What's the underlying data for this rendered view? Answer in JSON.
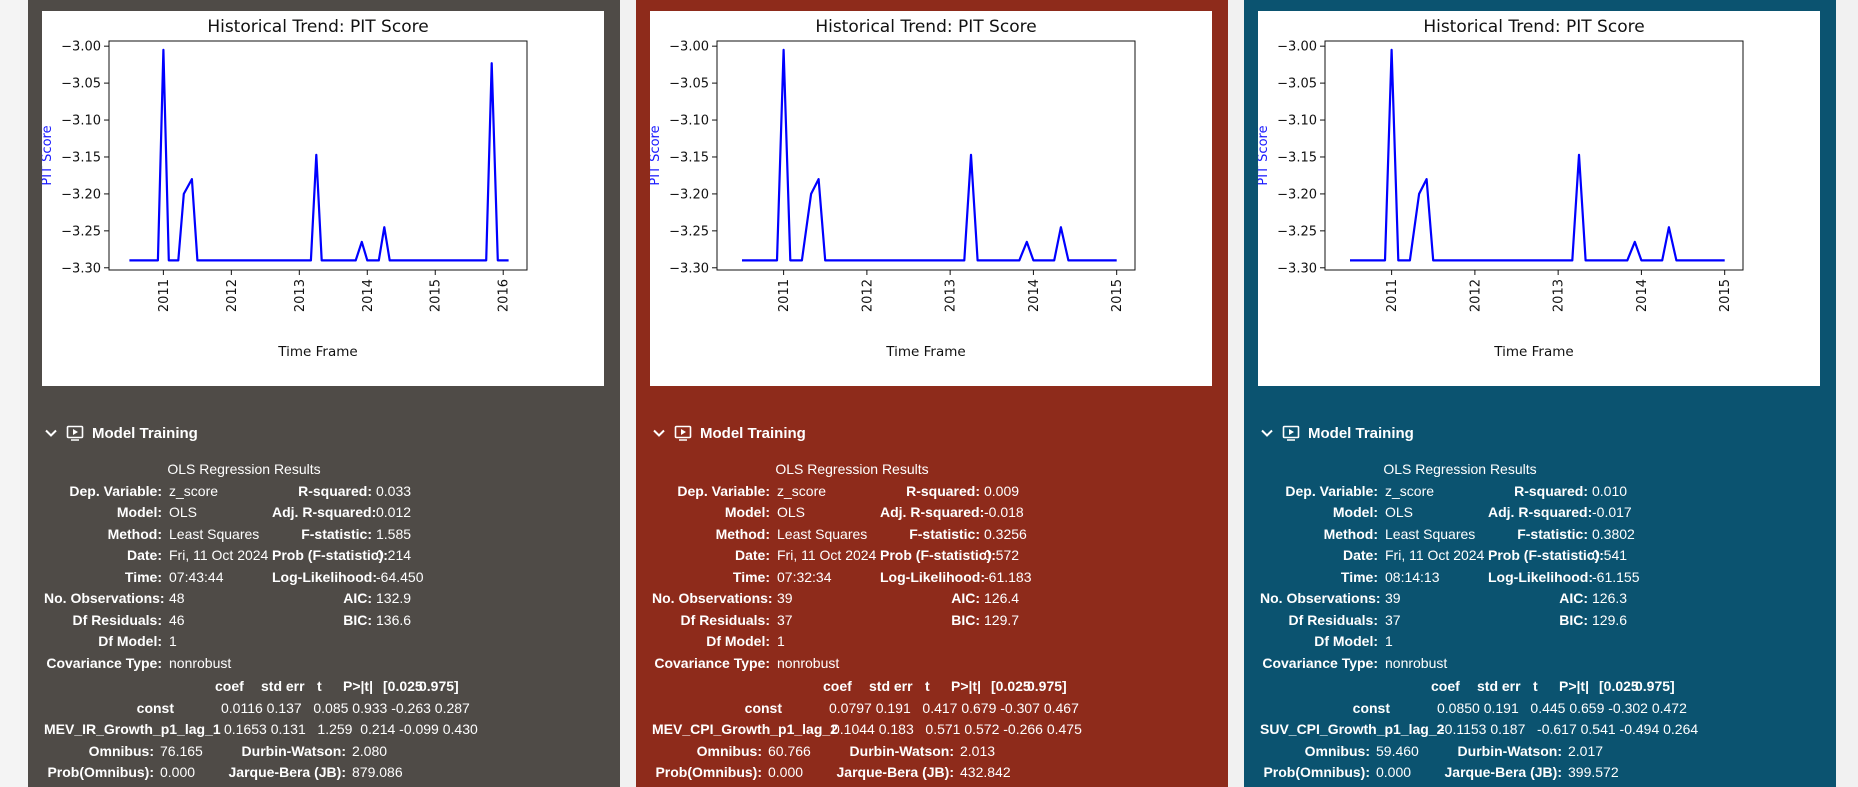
{
  "section_label": "Model Training",
  "colors": {
    "panel_0": "#4f4b47",
    "panel_1": "#8e2b1b",
    "panel_2": "#0b5370",
    "line": "#0000ff"
  },
  "icons": [
    "chevron-down-icon",
    "run-output-icon"
  ],
  "panels": [
    {
      "chart_data": {
        "type": "line",
        "title": "Historical Trend: PIT Score",
        "xlabel": "Time Frame",
        "ylabel": "PIT Score",
        "ylim": [
          -3.303,
          -2.993
        ],
        "xlim": [
          2010.2,
          2016.35
        ],
        "yticks": [
          -3.0,
          -3.05,
          -3.1,
          -3.15,
          -3.2,
          -3.25,
          -3.3
        ],
        "ytick_labels": [
          "−3.00",
          "−3.05",
          "−3.10",
          "−3.15",
          "−3.20",
          "−3.25",
          "−3.30"
        ],
        "xticks": [
          2011,
          2012,
          2013,
          2014,
          2015,
          2016
        ],
        "xtick_labels": [
          "2011",
          "2012",
          "2013",
          "2014",
          "2015",
          "2016"
        ],
        "series": [
          {
            "x": [
              2010.5,
              2010.92,
              2011.0,
              2011.08,
              2011.22,
              2011.3,
              2011.42,
              2011.5,
              2013.17,
              2013.25,
              2013.33,
              2013.83,
              2013.92,
              2014.0,
              2014.17,
              2014.25,
              2014.33,
              2014.42,
              2015.75,
              2015.83,
              2015.92,
              2016.08
            ],
            "y": [
              -3.29,
              -3.29,
              -3.005,
              -3.29,
              -3.29,
              -3.2,
              -3.18,
              -3.29,
              -3.29,
              -3.147,
              -3.29,
              -3.29,
              -3.265,
              -3.29,
              -3.29,
              -3.245,
              -3.29,
              -3.29,
              -3.29,
              -3.023,
              -3.29,
              -3.29
            ]
          }
        ]
      },
      "ols": {
        "title": "OLS Regression Results",
        "rows": [
          [
            "Dep. Variable:",
            "z_score",
            "R-squared:",
            "0.033"
          ],
          [
            "Model:",
            "OLS",
            "Adj. R-squared:",
            "0.012"
          ],
          [
            "Method:",
            "Least Squares",
            "F-statistic:",
            "1.585"
          ],
          [
            "Date:",
            "Fri, 11 Oct 2024",
            "Prob (F-statistic):",
            "0.214"
          ],
          [
            "Time:",
            "07:43:44",
            "Log-Likelihood:",
            "-64.450"
          ],
          [
            "No. Observations:",
            "48",
            "AIC:",
            "132.9"
          ],
          [
            "Df Residuals:",
            "46",
            "BIC:",
            "136.6"
          ],
          [
            "Df Model:",
            "1",
            "",
            ""
          ],
          [
            "Covariance Type:",
            "nonrobust",
            "",
            ""
          ]
        ],
        "coef_header": [
          "coef",
          "std err",
          "t",
          "P>|t|",
          "[0.025",
          "0.975]"
        ],
        "coefs": [
          {
            "name": "const",
            "values": "0.0116 0.137   0.085 0.933 -0.263 0.287"
          },
          {
            "name": "MEV_IR_Growth_p1_lag_1",
            "values": "0.1653 0.131   1.259  0.214 -0.099 0.430"
          }
        ],
        "bottom_rows": [
          [
            "Omnibus:",
            "76.165",
            "Durbin-Watson:",
            "2.080"
          ],
          [
            "Prob(Omnibus):",
            "0.000",
            "Jarque-Bera (JB):",
            "879.086"
          ]
        ]
      }
    },
    {
      "chart_data": {
        "type": "line",
        "title": "Historical Trend: PIT Score",
        "xlabel": "Time Frame",
        "ylabel": "PIT Score",
        "ylim": [
          -3.303,
          -2.993
        ],
        "xlim": [
          2010.2,
          2015.22
        ],
        "yticks": [
          -3.0,
          -3.05,
          -3.1,
          -3.15,
          -3.2,
          -3.25,
          -3.3
        ],
        "ytick_labels": [
          "−3.00",
          "−3.05",
          "−3.10",
          "−3.15",
          "−3.20",
          "−3.25",
          "−3.30"
        ],
        "xticks": [
          2011,
          2012,
          2013,
          2014,
          2015
        ],
        "xtick_labels": [
          "2011",
          "2012",
          "2013",
          "2014",
          "2015"
        ],
        "series": [
          {
            "x": [
              2010.5,
              2010.92,
              2011.0,
              2011.08,
              2011.22,
              2011.33,
              2011.42,
              2011.5,
              2013.17,
              2013.25,
              2013.33,
              2013.83,
              2013.92,
              2014.0,
              2014.25,
              2014.33,
              2014.42,
              2015.0
            ],
            "y": [
              -3.29,
              -3.29,
              -3.005,
              -3.29,
              -3.29,
              -3.2,
              -3.18,
              -3.29,
              -3.29,
              -3.147,
              -3.29,
              -3.29,
              -3.265,
              -3.29,
              -3.29,
              -3.245,
              -3.29,
              -3.29
            ]
          }
        ]
      },
      "ols": {
        "title": "OLS Regression Results",
        "rows": [
          [
            "Dep. Variable:",
            "z_score",
            "R-squared:",
            "0.009"
          ],
          [
            "Model:",
            "OLS",
            "Adj. R-squared:",
            "-0.018"
          ],
          [
            "Method:",
            "Least Squares",
            "F-statistic:",
            "0.3256"
          ],
          [
            "Date:",
            "Fri, 11 Oct 2024",
            "Prob (F-statistic):",
            "0.572"
          ],
          [
            "Time:",
            "07:32:34",
            "Log-Likelihood:",
            "-61.183"
          ],
          [
            "No. Observations:",
            "39",
            "AIC:",
            "126.4"
          ],
          [
            "Df Residuals:",
            "37",
            "BIC:",
            "129.7"
          ],
          [
            "Df Model:",
            "1",
            "",
            ""
          ],
          [
            "Covariance Type:",
            "nonrobust",
            "",
            ""
          ]
        ],
        "coef_header": [
          "coef",
          "std err",
          "t",
          "P>|t|",
          "[0.025",
          "0.975]"
        ],
        "coefs": [
          {
            "name": "const",
            "values": "0.0797 0.191   0.417 0.679 -0.307 0.467"
          },
          {
            "name": "MEV_CPI_Growth_p1_lag_2",
            "values": "0.1044 0.183   0.571 0.572 -0.266 0.475"
          }
        ],
        "bottom_rows": [
          [
            "Omnibus:",
            "60.766",
            "Durbin-Watson:",
            "2.013"
          ],
          [
            "Prob(Omnibus):",
            "0.000",
            "Jarque-Bera (JB):",
            "432.842"
          ]
        ]
      }
    },
    {
      "chart_data": {
        "type": "line",
        "title": "Historical Trend: PIT Score",
        "xlabel": "Time Frame",
        "ylabel": "PIT Score",
        "ylim": [
          -3.303,
          -2.993
        ],
        "xlim": [
          2010.2,
          2015.22
        ],
        "yticks": [
          -3.0,
          -3.05,
          -3.1,
          -3.15,
          -3.2,
          -3.25,
          -3.3
        ],
        "ytick_labels": [
          "−3.00",
          "−3.05",
          "−3.10",
          "−3.15",
          "−3.20",
          "−3.25",
          "−3.30"
        ],
        "xticks": [
          2011,
          2012,
          2013,
          2014,
          2015
        ],
        "xtick_labels": [
          "2011",
          "2012",
          "2013",
          "2014",
          "2015"
        ],
        "series": [
          {
            "x": [
              2010.5,
              2010.92,
              2011.0,
              2011.08,
              2011.22,
              2011.33,
              2011.42,
              2011.5,
              2013.17,
              2013.25,
              2013.33,
              2013.83,
              2013.92,
              2014.0,
              2014.25,
              2014.33,
              2014.42,
              2015.0
            ],
            "y": [
              -3.29,
              -3.29,
              -3.005,
              -3.29,
              -3.29,
              -3.2,
              -3.18,
              -3.29,
              -3.29,
              -3.147,
              -3.29,
              -3.29,
              -3.265,
              -3.29,
              -3.29,
              -3.245,
              -3.29,
              -3.29
            ]
          }
        ]
      },
      "ols": {
        "title": "OLS Regression Results",
        "rows": [
          [
            "Dep. Variable:",
            "z_score",
            "R-squared:",
            "0.010"
          ],
          [
            "Model:",
            "OLS",
            "Adj. R-squared:",
            "-0.017"
          ],
          [
            "Method:",
            "Least Squares",
            "F-statistic:",
            "0.3802"
          ],
          [
            "Date:",
            "Fri, 11 Oct 2024",
            "Prob (F-statistic):",
            "0.541"
          ],
          [
            "Time:",
            "08:14:13",
            "Log-Likelihood:",
            "-61.155"
          ],
          [
            "No. Observations:",
            "39",
            "AIC:",
            "126.3"
          ],
          [
            "Df Residuals:",
            "37",
            "BIC:",
            "129.6"
          ],
          [
            "Df Model:",
            "1",
            "",
            ""
          ],
          [
            "Covariance Type:",
            "nonrobust",
            "",
            ""
          ]
        ],
        "coef_header": [
          "coef",
          "std err",
          "t",
          "P>|t|",
          "[0.025",
          "0.975]"
        ],
        "coefs": [
          {
            "name": "const",
            "values": "0.0850 0.191   0.445 0.659 -0.302 0.472"
          },
          {
            "name": "SUV_CPI_Growth_p1_lag_2",
            "values": "-0.1153 0.187   -0.617 0.541 -0.494 0.264"
          }
        ],
        "bottom_rows": [
          [
            "Omnibus:",
            "59.460",
            "Durbin-Watson:",
            "2.017"
          ],
          [
            "Prob(Omnibus):",
            "0.000",
            "Jarque-Bera (JB):",
            "399.572"
          ]
        ]
      }
    }
  ]
}
